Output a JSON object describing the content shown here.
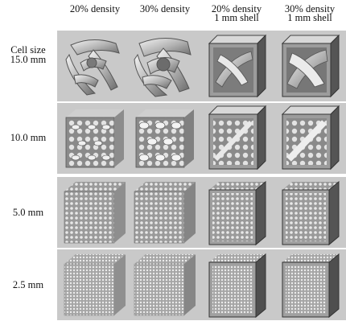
{
  "columns": [
    {
      "lines": [
        "20% density"
      ]
    },
    {
      "lines": [
        "30% density"
      ]
    },
    {
      "lines": [
        "20% density",
        "1 mm shell"
      ]
    },
    {
      "lines": [
        "30% density",
        "1 mm shell"
      ]
    }
  ],
  "rows": [
    {
      "lines": [
        "Cell size",
        "15.0 mm"
      ]
    },
    {
      "lines": [
        "10.0 mm"
      ]
    },
    {
      "lines": [
        "5.0 mm"
      ]
    },
    {
      "lines": [
        "2.5 mm"
      ]
    }
  ],
  "colors": {
    "panel_bg": "#c9c9c9",
    "solid_light": "#e6e6e6",
    "solid_mid": "#a9a9a9",
    "solid_dark": "#5a5a5a"
  }
}
